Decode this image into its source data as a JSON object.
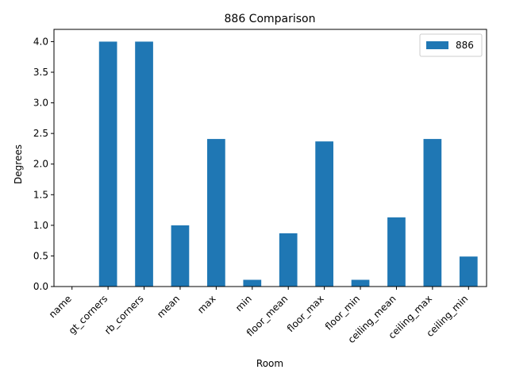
{
  "chart_data": {
    "type": "bar",
    "title": "886 Comparison",
    "xlabel": "Room",
    "ylabel": "Degrees",
    "categories": [
      "name",
      "gt_corners",
      "rb_corners",
      "mean",
      "max",
      "min",
      "floor_mean",
      "floor_max",
      "floor_min",
      "ceiling_mean",
      "ceiling_max",
      "ceiling_min"
    ],
    "series": [
      {
        "name": "886",
        "color": "#1f77b4",
        "values": [
          0,
          4.0,
          4.0,
          1.0,
          2.41,
          0.11,
          0.87,
          2.37,
          0.11,
          1.13,
          2.41,
          0.49
        ]
      }
    ],
    "ylim": [
      0,
      4.2
    ],
    "yticks": [
      "0.0",
      "0.5",
      "1.0",
      "1.5",
      "2.0",
      "2.5",
      "3.0",
      "3.5",
      "4.0"
    ],
    "legend": "top-right",
    "grid": false
  }
}
